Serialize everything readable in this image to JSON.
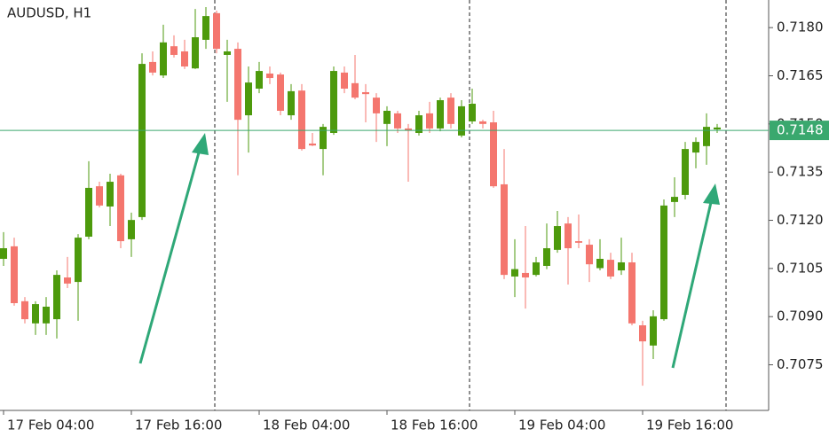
{
  "chart_data": {
    "type": "candlestick",
    "title": "AUDUSD, H1",
    "categories": [
      "17 Feb 04:00",
      null,
      null,
      null,
      null,
      null,
      null,
      null,
      null,
      null,
      null,
      null,
      "17 Feb 16:00",
      null,
      null,
      null,
      null,
      null,
      null,
      null,
      null,
      null,
      null,
      null,
      "18 Feb 04:00",
      null,
      null,
      null,
      null,
      null,
      null,
      null,
      null,
      null,
      null,
      null,
      "18 Feb 16:00",
      null,
      null,
      null,
      null,
      null,
      null,
      null,
      null,
      null,
      null,
      null,
      "19 Feb 04:00",
      null,
      null,
      null,
      null,
      null,
      null,
      null,
      null,
      null,
      null,
      null,
      "19 Feb 16:00",
      null,
      null,
      null,
      null,
      null,
      null,
      null
    ],
    "open": [
      0.7108,
      0.71119,
      0.70948,
      0.70879,
      0.70879,
      0.70892,
      0.71022,
      0.71008,
      0.71149,
      0.71306,
      0.71243,
      0.7134,
      0.71141,
      0.7121,
      0.71693,
      0.71651,
      0.71742,
      0.71726,
      0.71673,
      0.71762,
      0.71845,
      0.71715,
      0.71734,
      0.71527,
      0.7161,
      0.71657,
      0.71654,
      0.71527,
      0.71604,
      0.71439,
      0.71422,
      0.71472,
      0.7166,
      0.71627,
      0.71599,
      0.71582,
      0.715,
      0.71533,
      0.71486,
      0.71472,
      0.71533,
      0.71486,
      0.71582,
      0.71464,
      0.71508,
      0.71508,
      0.71505,
      0.71312,
      0.71025,
      0.71036,
      0.7103,
      0.71058,
      0.71108,
      0.7119,
      0.71135,
      0.71124,
      0.71051,
      0.71077,
      0.71044,
      0.71069,
      0.70873,
      0.7081,
      0.70892,
      0.71257,
      0.71279,
      0.71411,
      0.71431,
      0.71483
    ],
    "high": [
      0.71163,
      0.71146,
      0.70961,
      0.70948,
      0.70961,
      0.71044,
      0.71086,
      0.71157,
      0.71384,
      0.7132,
      0.71345,
      0.71345,
      0.71224,
      0.7172,
      0.71726,
      0.71809,
      0.71776,
      0.71762,
      0.71858,
      0.71864,
      0.71853,
      0.71762,
      0.71754,
      0.71679,
      0.71693,
      0.71679,
      0.7166,
      0.71624,
      0.71624,
      0.71472,
      0.715,
      0.71679,
      0.71679,
      0.71715,
      0.71624,
      0.71596,
      0.71555,
      0.71541,
      0.715,
      0.71541,
      0.71569,
      0.71582,
      0.71596,
      0.71574,
      0.7161,
      0.71513,
      0.71541,
      0.71422,
      0.71141,
      0.71182,
      0.71086,
      0.7119,
      0.71229,
      0.7121,
      0.71218,
      0.71141,
      0.71141,
      0.71099,
      0.71146,
      0.71099,
      0.70887,
      0.7092,
      0.71265,
      0.71334,
      0.71444,
      0.71458,
      0.71533,
      0.715
    ],
    "low": [
      0.71058,
      0.70934,
      0.70879,
      0.70843,
      0.70843,
      0.70832,
      0.70989,
      0.70887,
      0.71141,
      0.7124,
      0.71182,
      0.71113,
      0.71086,
      0.71201,
      0.71651,
      0.71643,
      0.71707,
      0.71671,
      0.71671,
      0.71734,
      0.7172,
      0.71569,
      0.7134,
      0.71411,
      0.71596,
      0.71624,
      0.71527,
      0.71513,
      0.71417,
      0.71431,
      0.7134,
      0.71466,
      0.71596,
      0.71577,
      0.71505,
      0.71444,
      0.71431,
      0.71472,
      0.7132,
      0.71464,
      0.71472,
      0.71477,
      0.71486,
      0.71458,
      0.715,
      0.71486,
      0.71301,
      0.71017,
      0.70961,
      0.70925,
      0.71025,
      0.71048,
      0.71099,
      0.71,
      0.71113,
      0.71008,
      0.71044,
      0.71017,
      0.7103,
      0.70873,
      0.70685,
      0.70768,
      0.70887,
      0.7121,
      0.71265,
      0.71362,
      0.71373,
      0.71472
    ],
    "close": [
      0.71113,
      0.70942,
      0.70892,
      0.70939,
      0.70931,
      0.7103,
      0.71003,
      0.71146,
      0.71301,
      0.71246,
      0.7132,
      0.71135,
      0.71201,
      0.71687,
      0.7166,
      0.71754,
      0.71715,
      0.71679,
      0.7177,
      0.71836,
      0.71734,
      0.71726,
      0.71513,
      0.71629,
      0.71665,
      0.71643,
      0.71541,
      0.71602,
      0.71422,
      0.71433,
      0.71491,
      0.71665,
      0.7161,
      0.71582,
      0.71593,
      0.71533,
      0.71541,
      0.71486,
      0.7148,
      0.71527,
      0.71486,
      0.71574,
      0.715,
      0.71555,
      0.71563,
      0.715,
      0.71306,
      0.7103,
      0.71048,
      0.71022,
      0.71069,
      0.71113,
      0.71182,
      0.71113,
      0.7113,
      0.71063,
      0.7108,
      0.71025,
      0.71069,
      0.70879,
      0.70823,
      0.70901,
      0.71246,
      0.71273,
      0.71422,
      0.71444,
      0.71491,
      0.71489
    ],
    "up_color": "#4d9a0c",
    "down_color": "#f4766e",
    "current_price": 0.7148,
    "current_price_color": "#3aa86e",
    "ylim": [
      0.70608,
      0.71886
    ],
    "yticks": [
      {
        "value": 0.718,
        "label": "0.7180"
      },
      0.7165,
      {
        "value": 0.715,
        "label": "0.7150"
      },
      0.7135,
      {
        "value": 0.712,
        "label": "0.7120"
      },
      0.7105,
      {
        "value": 0.709,
        "label": "0.7090"
      },
      0.7075
    ]
  }
}
